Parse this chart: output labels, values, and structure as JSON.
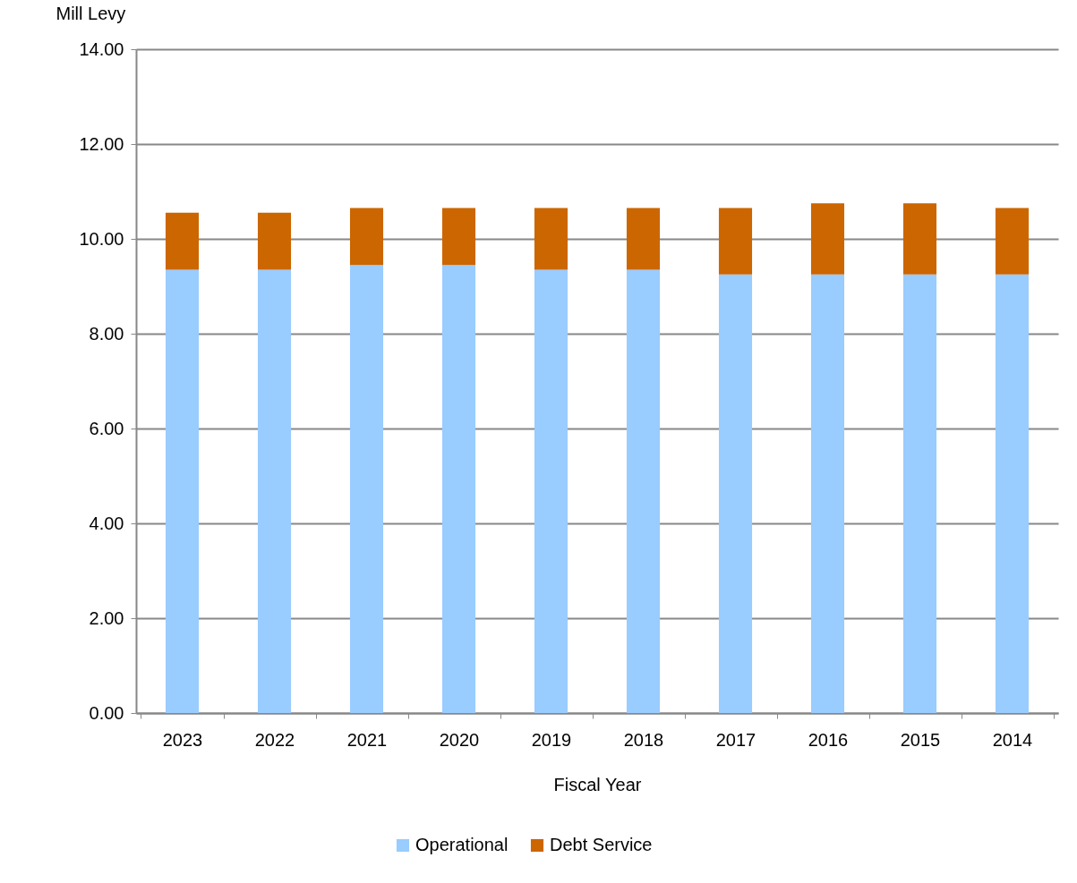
{
  "chart_data": {
    "type": "bar",
    "stacked": true,
    "ylabel": "Mill Levy",
    "xlabel": "Fiscal Year",
    "categories": [
      "2023",
      "2022",
      "2021",
      "2020",
      "2019",
      "2018",
      "2017",
      "2016",
      "2015",
      "2014"
    ],
    "series": [
      {
        "name": "Operational",
        "color": "#99ccff",
        "values": [
          9.35,
          9.35,
          9.45,
          9.45,
          9.35,
          9.35,
          9.25,
          9.25,
          9.25,
          9.25
        ]
      },
      {
        "name": "Debt Service",
        "color": "#cc6600",
        "values": [
          1.2,
          1.2,
          1.2,
          1.2,
          1.3,
          1.3,
          1.4,
          1.5,
          1.5,
          1.4
        ]
      }
    ],
    "ylim": [
      0,
      14
    ],
    "yticks": [
      {
        "value": 0,
        "label": "0.00"
      },
      {
        "value": 2,
        "label": "2.00"
      },
      {
        "value": 4,
        "label": "4.00"
      },
      {
        "value": 6,
        "label": "6.00"
      },
      {
        "value": 8,
        "label": "8.00"
      },
      {
        "value": 10,
        "label": "10.00"
      },
      {
        "value": 12,
        "label": "12.00"
      },
      {
        "value": 14,
        "label": "14.00"
      }
    ],
    "grid": "y",
    "legend": "bottom"
  }
}
